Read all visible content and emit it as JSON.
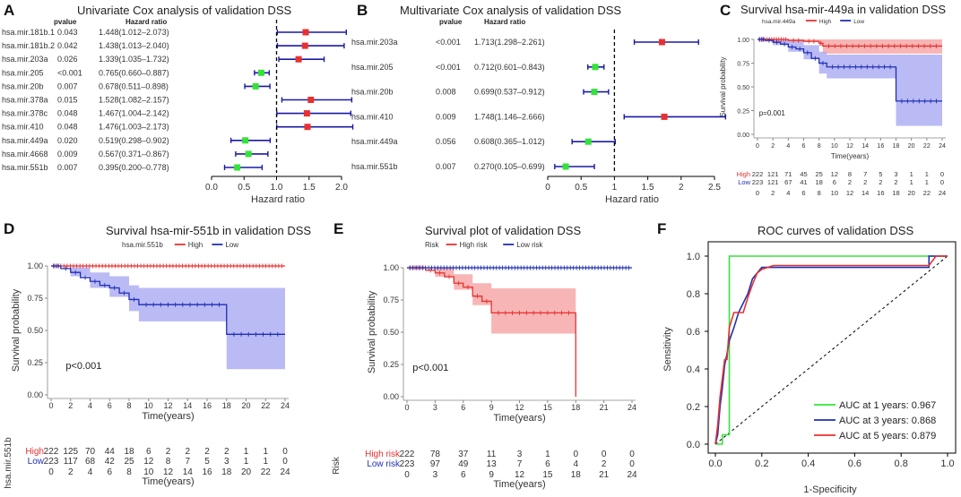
{
  "figure": {
    "panels": [
      {
        "label": "A",
        "title": "Univariate Cox analysis of validation DSS",
        "col_pvalue": "pvalue",
        "col_hr": "Hazard ratio",
        "xlabel": "Hazard ratio"
      },
      {
        "label": "B",
        "title": "Multivariate Cox analysis of validation DSS",
        "col_pvalue": "pvalue",
        "col_hr": "Hazard ratio",
        "xlabel": "Hazard ratio"
      },
      {
        "label": "C",
        "title": "Survival hsa-mir-449a in validation DSS",
        "ylabel": "Survival probability",
        "xlabel": "Time(years)",
        "pvalue": "p=0.001",
        "legend_title": "hsa.mir.449a",
        "legend_items": [
          "High",
          "Low"
        ],
        "risk_table_label": "hsa.mir.449a"
      },
      {
        "label": "D",
        "title": "Survival hsa-mir-551b in validation DSS",
        "ylabel": "Survival probability",
        "xlabel": "Time(years)",
        "pvalue": "p<0.001",
        "legend_title": "hsa.mir.551b",
        "legend_items": [
          "High",
          "Low"
        ],
        "risk_table_label": "hsa.mir.551b"
      },
      {
        "label": "E",
        "title": "Survival plot of validation DSS",
        "ylabel": "Survival probability",
        "xlabel": "Time(years)",
        "pvalue": "p<0.001",
        "legend_title": "Risk",
        "legend_items": [
          "High risk",
          "Low risk"
        ],
        "risk_table_label": "Risk"
      },
      {
        "label": "F",
        "title": "ROC curves of validation DSS",
        "ylabel": "Sensitivity",
        "xlabel": "1-Specificity"
      }
    ]
  },
  "colors": {
    "red": "#e8312f",
    "blue": "#1f2fb5",
    "green": "#35e23a",
    "redfill": "#f5a3a3",
    "bluefill": "#a9a9f3",
    "navy": "#1a1aa6"
  },
  "chart_data": [
    {
      "type": "forest",
      "panel": "A",
      "rows": [
        {
          "name": "hsa.mir.181b.1",
          "pvalue": "0.043",
          "hr_text": "1.448(1.012–2.073)",
          "hr": 1.448,
          "lo": 1.012,
          "hi": 2.073
        },
        {
          "name": "hsa.mir.181b.2",
          "pvalue": "0.042",
          "hr_text": "1.438(1.013–2.040)",
          "hr": 1.438,
          "lo": 1.013,
          "hi": 2.04
        },
        {
          "name": "hsa.mir.203a",
          "pvalue": "0.026",
          "hr_text": "1.339(1.035–1.732)",
          "hr": 1.339,
          "lo": 1.035,
          "hi": 1.732
        },
        {
          "name": "hsa.mir.205",
          "pvalue": "<0.001",
          "hr_text": "0.765(0.660–0.887)",
          "hr": 0.765,
          "lo": 0.66,
          "hi": 0.887
        },
        {
          "name": "hsa.mir.20b",
          "pvalue": "0.007",
          "hr_text": "0.678(0.511–0.898)",
          "hr": 0.678,
          "lo": 0.511,
          "hi": 0.898
        },
        {
          "name": "hsa.mir.378a",
          "pvalue": "0.015",
          "hr_text": "1.528(1.082–2.157)",
          "hr": 1.528,
          "lo": 1.082,
          "hi": 2.157
        },
        {
          "name": "hsa.mir.378c",
          "pvalue": "0.048",
          "hr_text": "1.467(1.004–2.142)",
          "hr": 1.467,
          "lo": 1.004,
          "hi": 2.142
        },
        {
          "name": "hsa.mir.410",
          "pvalue": "0.048",
          "hr_text": "1.476(1.003–2.173)",
          "hr": 1.476,
          "lo": 1.003,
          "hi": 2.173
        },
        {
          "name": "hsa.mir.449a",
          "pvalue": "0.020",
          "hr_text": "0.519(0.298–0.902)",
          "hr": 0.519,
          "lo": 0.298,
          "hi": 0.902
        },
        {
          "name": "hsa.mir.4668",
          "pvalue": "0.009",
          "hr_text": "0.567(0.371–0.867)",
          "hr": 0.567,
          "lo": 0.371,
          "hi": 0.867
        },
        {
          "name": "hsa.mir.551b",
          "pvalue": "0.007",
          "hr_text": "0.395(0.200–0.778)",
          "hr": 0.395,
          "lo": 0.2,
          "hi": 0.778
        }
      ],
      "xlim": [
        0,
        2.0
      ],
      "xticks": [
        0.0,
        0.5,
        1.0,
        1.5,
        2.0
      ],
      "tick_labels": [
        "0.0",
        "0.5",
        "1.0",
        "1.5",
        "2.0"
      ],
      "ref": 1.0
    },
    {
      "type": "forest",
      "panel": "B",
      "rows": [
        {
          "name": "hsa.mir.203a",
          "pvalue": "<0.001",
          "hr_text": "1.713(1.298–2.261)",
          "hr": 1.713,
          "lo": 1.298,
          "hi": 2.261
        },
        {
          "name": "hsa.mir.205",
          "pvalue": "<0.001",
          "hr_text": "0.712(0.601–0.843)",
          "hr": 0.712,
          "lo": 0.601,
          "hi": 0.843
        },
        {
          "name": "hsa.mir.20b",
          "pvalue": "0.008",
          "hr_text": "0.699(0.537–0.912)",
          "hr": 0.699,
          "lo": 0.537,
          "hi": 0.912
        },
        {
          "name": "hsa.mir.410",
          "pvalue": "0.009",
          "hr_text": "1.748(1.146–2.666)",
          "hr": 1.748,
          "lo": 1.146,
          "hi": 2.666
        },
        {
          "name": "hsa.mir.449a",
          "pvalue": "0.056",
          "hr_text": "0.608(0.365–1.012)",
          "hr": 0.608,
          "lo": 0.365,
          "hi": 1.012
        },
        {
          "name": "hsa.mir.551b",
          "pvalue": "0.007",
          "hr_text": "0.270(0.105–0.699)",
          "hr": 0.27,
          "lo": 0.105,
          "hi": 0.699
        }
      ],
      "xlim": [
        0,
        2.5
      ],
      "xticks": [
        0,
        0.5,
        1.0,
        1.5,
        2.0,
        2.5
      ],
      "tick_labels": [
        "0",
        "0.5",
        "1",
        "1.5",
        "2",
        "2.5"
      ],
      "ref": 1.0
    },
    {
      "type": "km",
      "panel": "C",
      "xlim": [
        0,
        24
      ],
      "xticks": [
        0,
        2,
        4,
        6,
        8,
        10,
        12,
        14,
        16,
        18,
        20,
        22,
        24
      ],
      "ylim": [
        0,
        1
      ],
      "yticks": [
        0,
        0.25,
        0.5,
        0.75,
        1.0
      ],
      "ytick_labels": [
        "0.00",
        "0.25",
        "0.50",
        "0.75",
        "1.00"
      ],
      "series": [
        {
          "name": "High",
          "color": "red",
          "steps": [
            [
              0,
              1
            ],
            [
              4,
              0.99
            ],
            [
              6,
              0.98
            ],
            [
              8,
              0.96
            ],
            [
              8.5,
              0.93
            ],
            [
              24,
              0.93
            ]
          ],
          "band": [
            [
              0,
              1,
              1
            ],
            [
              4,
              0.97,
              1
            ],
            [
              8,
              0.93,
              1
            ],
            [
              8.5,
              0.85,
              1
            ],
            [
              24,
              0.85,
              1
            ]
          ]
        },
        {
          "name": "Low",
          "color": "blue",
          "steps": [
            [
              0,
              1
            ],
            [
              1,
              0.99
            ],
            [
              2,
              0.97
            ],
            [
              3,
              0.95
            ],
            [
              4,
              0.92
            ],
            [
              5,
              0.9
            ],
            [
              6,
              0.86
            ],
            [
              7,
              0.8
            ],
            [
              8,
              0.75
            ],
            [
              9,
              0.71
            ],
            [
              18,
              0.35
            ],
            [
              24,
              0.35
            ]
          ],
          "band": [
            [
              0,
              1,
              1
            ],
            [
              2,
              0.94,
              1
            ],
            [
              4,
              0.87,
              0.98
            ],
            [
              6,
              0.79,
              0.94
            ],
            [
              8,
              0.64,
              0.87
            ],
            [
              9,
              0.59,
              0.84
            ],
            [
              18,
              0.09,
              0.84
            ],
            [
              24,
              0.09,
              0.84
            ]
          ]
        }
      ],
      "risk_table": {
        "x": [
          0,
          2,
          4,
          6,
          8,
          10,
          12,
          14,
          16,
          18,
          20,
          22,
          24
        ],
        "rows": [
          {
            "name": "High",
            "values": [
              222,
              121,
              71,
              45,
              25,
              12,
              8,
              7,
              5,
              3,
              1,
              1,
              0
            ]
          },
          {
            "name": "Low",
            "values": [
              223,
              121,
              67,
              41,
              18,
              6,
              2,
              2,
              2,
              2,
              1,
              1,
              0
            ]
          }
        ]
      }
    },
    {
      "type": "km",
      "panel": "D",
      "xlim": [
        0,
        24
      ],
      "xticks": [
        0,
        2,
        4,
        6,
        8,
        10,
        12,
        14,
        16,
        18,
        20,
        22,
        24
      ],
      "ylim": [
        0,
        1
      ],
      "yticks": [
        0,
        0.25,
        0.5,
        0.75,
        1.0
      ],
      "ytick_labels": [
        "0.00",
        "0.25",
        "0.50",
        "0.75",
        "1.00"
      ],
      "series": [
        {
          "name": "High",
          "color": "red",
          "steps": [
            [
              0,
              1
            ],
            [
              24,
              1
            ]
          ],
          "band": [
            [
              0,
              1,
              1
            ],
            [
              24,
              1,
              1
            ]
          ]
        },
        {
          "name": "Low",
          "color": "blue",
          "steps": [
            [
              0,
              1
            ],
            [
              1,
              0.98
            ],
            [
              2,
              0.95
            ],
            [
              3,
              0.91
            ],
            [
              4,
              0.88
            ],
            [
              5,
              0.85
            ],
            [
              6,
              0.83
            ],
            [
              7,
              0.79
            ],
            [
              8,
              0.74
            ],
            [
              9,
              0.7
            ],
            [
              18,
              0.47
            ],
            [
              24,
              0.47
            ]
          ],
          "band": [
            [
              0,
              1,
              1
            ],
            [
              2,
              0.92,
              0.99
            ],
            [
              4,
              0.83,
              0.95
            ],
            [
              6,
              0.76,
              0.92
            ],
            [
              8,
              0.65,
              0.85
            ],
            [
              9,
              0.57,
              0.83
            ],
            [
              18,
              0.2,
              0.83
            ],
            [
              24,
              0.2,
              0.83
            ]
          ]
        }
      ],
      "risk_table": {
        "x": [
          0,
          2,
          4,
          6,
          8,
          10,
          12,
          14,
          16,
          18,
          20,
          22,
          24
        ],
        "rows": [
          {
            "name": "High",
            "values": [
              222,
              125,
              70,
              44,
              18,
              6,
              2,
              2,
              2,
              2,
              1,
              1,
              0
            ]
          },
          {
            "name": "Low",
            "values": [
              223,
              117,
              68,
              42,
              25,
              12,
              8,
              7,
              5,
              3,
              1,
              1,
              0
            ]
          }
        ]
      }
    },
    {
      "type": "km",
      "panel": "E",
      "xlim": [
        0,
        24
      ],
      "xticks": [
        0,
        3,
        6,
        9,
        12,
        15,
        18,
        21,
        24
      ],
      "ylim": [
        0,
        1
      ],
      "yticks": [
        0,
        0.25,
        0.5,
        0.75,
        1.0
      ],
      "ytick_labels": [
        "0.00",
        "0.25",
        "0.50",
        "0.75",
        "1.00"
      ],
      "series": [
        {
          "name": "High risk",
          "color": "red",
          "steps": [
            [
              0,
              1
            ],
            [
              2,
              0.98
            ],
            [
              3,
              0.96
            ],
            [
              4,
              0.93
            ],
            [
              5,
              0.88
            ],
            [
              6,
              0.85
            ],
            [
              7,
              0.78
            ],
            [
              8,
              0.74
            ],
            [
              9,
              0.65
            ],
            [
              18,
              0.65
            ],
            [
              18,
              0.0
            ]
          ],
          "band": [
            [
              0,
              1,
              1
            ],
            [
              3,
              0.93,
              1
            ],
            [
              5,
              0.83,
              0.95
            ],
            [
              7,
              0.71,
              0.88
            ],
            [
              9,
              0.49,
              0.84
            ],
            [
              18,
              0.49,
              0.84
            ]
          ]
        },
        {
          "name": "Low risk",
          "color": "blue",
          "steps": [
            [
              0,
              1
            ],
            [
              24,
              1
            ]
          ],
          "band": [
            [
              0,
              1,
              1
            ],
            [
              24,
              1,
              1
            ]
          ]
        }
      ],
      "risk_table": {
        "x": [
          0,
          3,
          6,
          9,
          12,
          15,
          18,
          21,
          24
        ],
        "rows": [
          {
            "name": "High risk",
            "values": [
              222,
              78,
              37,
              11,
              3,
              1,
              0,
              0,
              0
            ]
          },
          {
            "name": "Low risk",
            "values": [
              223,
              97,
              49,
              13,
              7,
              6,
              4,
              2,
              0
            ]
          }
        ]
      }
    },
    {
      "type": "roc",
      "panel": "F",
      "xlim": [
        0,
        1
      ],
      "ylim": [
        0,
        1
      ],
      "xticks": [
        0,
        0.2,
        0.4,
        0.6,
        0.8,
        1.0
      ],
      "tick_labels": [
        "0.0",
        "0.2",
        "0.4",
        "0.6",
        "0.8",
        "1.0"
      ],
      "series": [
        {
          "name": "AUC at 1 years: 0.967",
          "color": "green",
          "points": [
            [
              0,
              0
            ],
            [
              0.03,
              0
            ],
            [
              0.03,
              0.05
            ],
            [
              0.06,
              0.05
            ],
            [
              0.06,
              1.0
            ],
            [
              1,
              1
            ]
          ]
        },
        {
          "name": "AUC at 3 years: 0.868",
          "color": "blue",
          "points": [
            [
              0,
              0
            ],
            [
              0.01,
              0.05
            ],
            [
              0.02,
              0.2
            ],
            [
              0.03,
              0.3
            ],
            [
              0.04,
              0.42
            ],
            [
              0.05,
              0.48
            ],
            [
              0.06,
              0.55
            ],
            [
              0.08,
              0.62
            ],
            [
              0.1,
              0.7
            ],
            [
              0.12,
              0.75
            ],
            [
              0.14,
              0.8
            ],
            [
              0.16,
              0.88
            ],
            [
              0.18,
              0.91
            ],
            [
              0.2,
              0.94
            ],
            [
              0.25,
              0.94
            ],
            [
              0.92,
              0.94
            ],
            [
              0.92,
              1
            ],
            [
              1,
              1
            ]
          ]
        },
        {
          "name": "AUC at 5 years: 0.879",
          "color": "red",
          "points": [
            [
              0,
              0
            ],
            [
              0.01,
              0.1
            ],
            [
              0.02,
              0.25
            ],
            [
              0.03,
              0.35
            ],
            [
              0.04,
              0.45
            ],
            [
              0.05,
              0.45
            ],
            [
              0.06,
              0.62
            ],
            [
              0.08,
              0.7
            ],
            [
              0.12,
              0.7
            ],
            [
              0.14,
              0.78
            ],
            [
              0.16,
              0.85
            ],
            [
              0.18,
              0.91
            ],
            [
              0.2,
              0.93
            ],
            [
              0.25,
              0.95
            ],
            [
              0.92,
              0.95
            ],
            [
              0.95,
              1
            ],
            [
              1,
              1
            ]
          ]
        }
      ]
    }
  ]
}
